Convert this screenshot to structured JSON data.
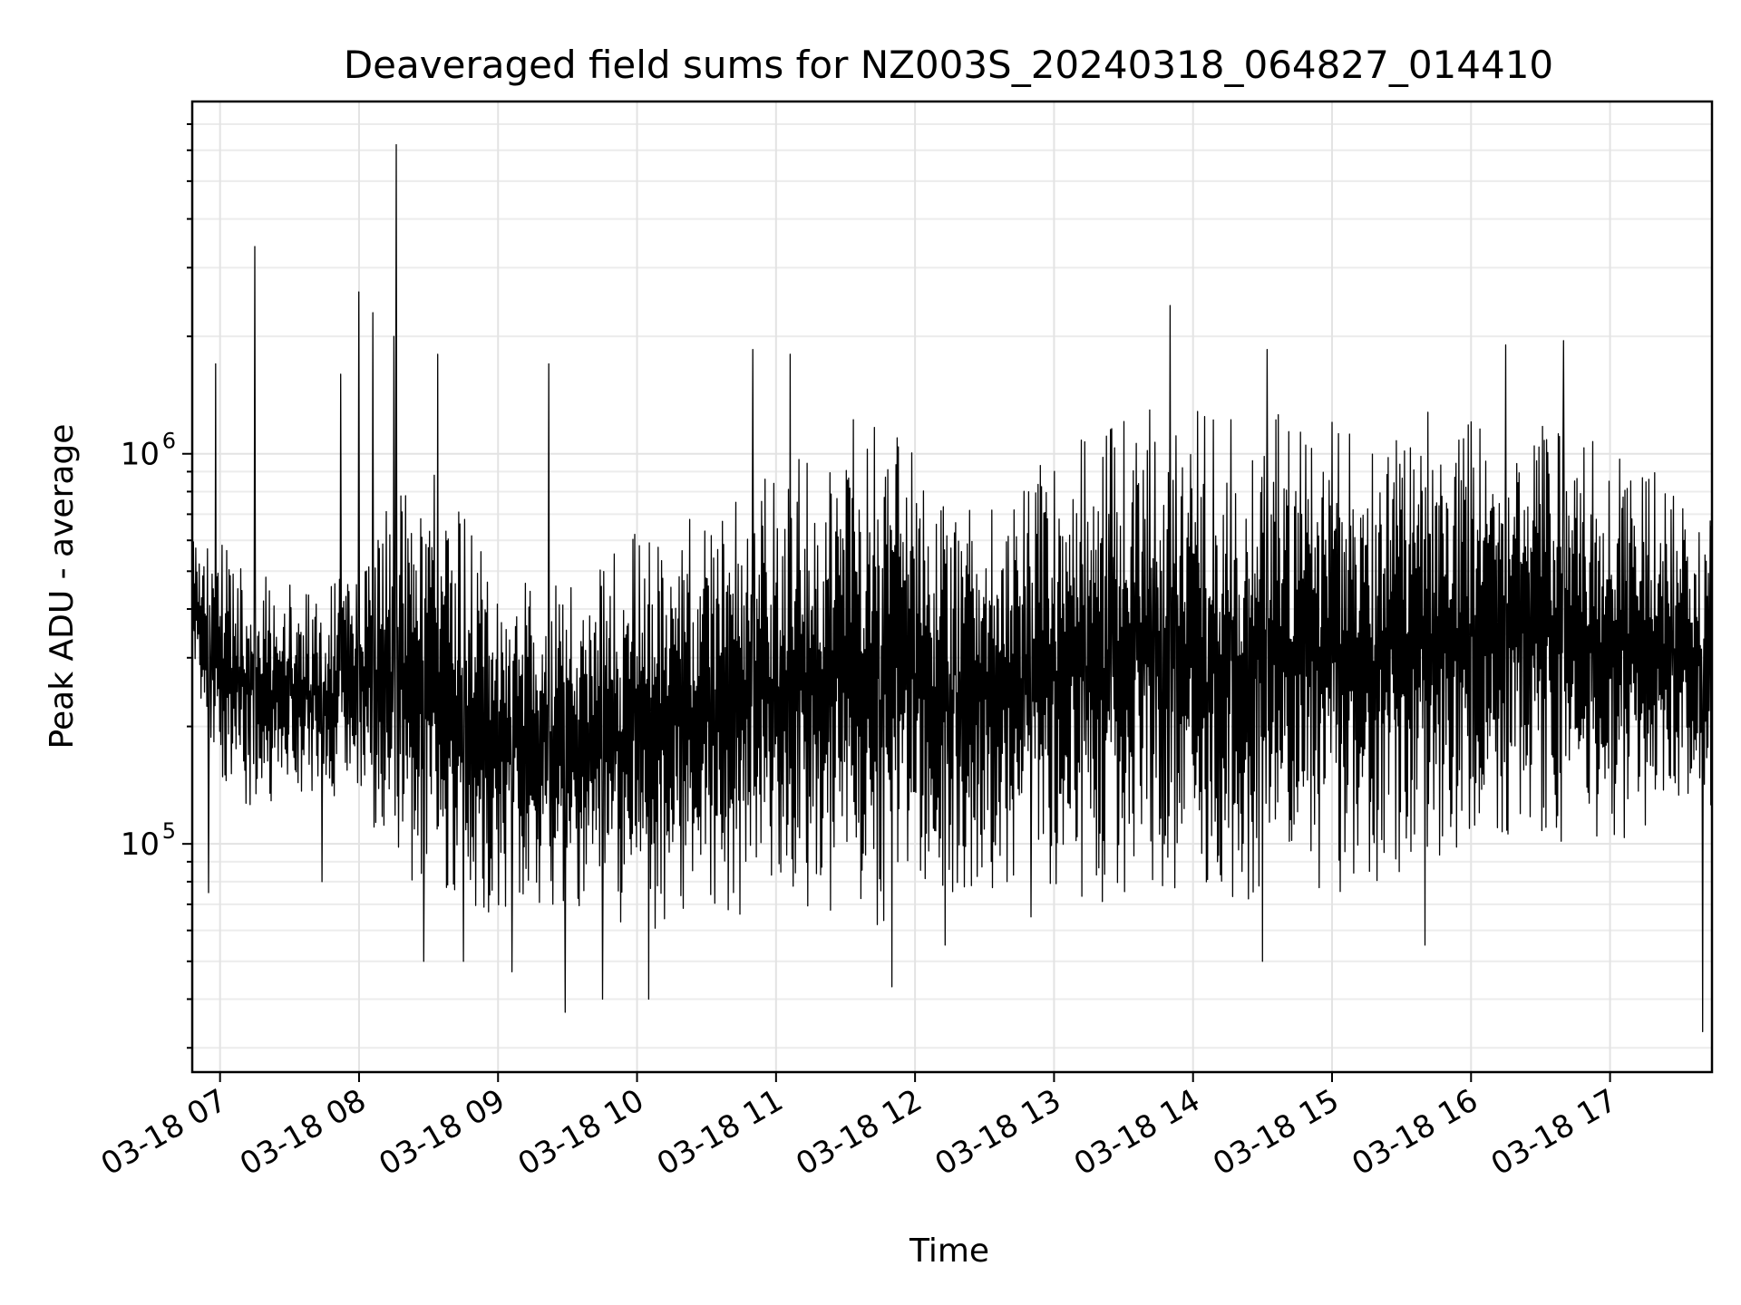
{
  "chart_data": {
    "type": "line",
    "title": "Deaveraged field sums for NZ003S_20240318_064827_014410",
    "xlabel": "Time",
    "ylabel": "Peak ADU - average",
    "xscale": "time",
    "yscale": "log",
    "xlim": [
      "2024-03-18 06:48",
      "2024-03-18 17:44"
    ],
    "ylim": [
      26000,
      8000000
    ],
    "grid": true,
    "legend": "none",
    "line_color": "#000000",
    "x_ticks": [
      {
        "value": "2024-03-18 07:00",
        "label": "03-18 07"
      },
      {
        "value": "2024-03-18 08:00",
        "label": "03-18 08"
      },
      {
        "value": "2024-03-18 09:00",
        "label": "03-18 09"
      },
      {
        "value": "2024-03-18 10:00",
        "label": "03-18 10"
      },
      {
        "value": "2024-03-18 11:00",
        "label": "03-18 11"
      },
      {
        "value": "2024-03-18 12:00",
        "label": "03-18 12"
      },
      {
        "value": "2024-03-18 13:00",
        "label": "03-18 13"
      },
      {
        "value": "2024-03-18 14:00",
        "label": "03-18 14"
      },
      {
        "value": "2024-03-18 15:00",
        "label": "03-18 15"
      },
      {
        "value": "2024-03-18 16:00",
        "label": "03-18 16"
      },
      {
        "value": "2024-03-18 17:00",
        "label": "03-18 17"
      }
    ],
    "y_ticks": [
      {
        "value": 100000,
        "base": "10",
        "exponent": "5"
      },
      {
        "value": 1000000,
        "base": "10",
        "exponent": "6"
      }
    ],
    "band_points": [
      {
        "t": "2024-03-18 06:48",
        "lo": 280000,
        "hi": 600000
      },
      {
        "t": "2024-03-18 07:00",
        "lo": 130000,
        "hi": 600000
      },
      {
        "t": "2024-03-18 07:20",
        "lo": 120000,
        "hi": 500000
      },
      {
        "t": "2024-03-18 07:40",
        "lo": 130000,
        "hi": 450000
      },
      {
        "t": "2024-03-18 08:00",
        "lo": 130000,
        "hi": 500000
      },
      {
        "t": "2024-03-18 08:20",
        "lo": 75000,
        "hi": 1000000
      },
      {
        "t": "2024-03-18 08:40",
        "lo": 70000,
        "hi": 850000
      },
      {
        "t": "2024-03-18 09:00",
        "lo": 65000,
        "hi": 450000
      },
      {
        "t": "2024-03-18 09:20",
        "lo": 70000,
        "hi": 500000
      },
      {
        "t": "2024-03-18 09:40",
        "lo": 60000,
        "hi": 500000
      },
      {
        "t": "2024-03-18 10:00",
        "lo": 60000,
        "hi": 650000
      },
      {
        "t": "2024-03-18 10:20",
        "lo": 60000,
        "hi": 700000
      },
      {
        "t": "2024-03-18 10:40",
        "lo": 60000,
        "hi": 750000
      },
      {
        "t": "2024-03-18 11:00",
        "lo": 70000,
        "hi": 900000
      },
      {
        "t": "2024-03-18 11:20",
        "lo": 65000,
        "hi": 1100000
      },
      {
        "t": "2024-03-18 11:40",
        "lo": 60000,
        "hi": 1300000
      },
      {
        "t": "2024-03-18 12:00",
        "lo": 70000,
        "hi": 1000000
      },
      {
        "t": "2024-03-18 12:20",
        "lo": 70000,
        "hi": 700000
      },
      {
        "t": "2024-03-18 12:40",
        "lo": 80000,
        "hi": 800000
      },
      {
        "t": "2024-03-18 13:00",
        "lo": 70000,
        "hi": 1000000
      },
      {
        "t": "2024-03-18 13:20",
        "lo": 65000,
        "hi": 1200000
      },
      {
        "t": "2024-03-18 13:40",
        "lo": 70000,
        "hi": 1300000
      },
      {
        "t": "2024-03-18 14:00",
        "lo": 70000,
        "hi": 1300000
      },
      {
        "t": "2024-03-18 14:20",
        "lo": 70000,
        "hi": 1300000
      },
      {
        "t": "2024-03-18 14:40",
        "lo": 70000,
        "hi": 1300000
      },
      {
        "t": "2024-03-18 15:00",
        "lo": 70000,
        "hi": 1300000
      },
      {
        "t": "2024-03-18 15:20",
        "lo": 80000,
        "hi": 1300000
      },
      {
        "t": "2024-03-18 15:40",
        "lo": 90000,
        "hi": 1300000
      },
      {
        "t": "2024-03-18 16:00",
        "lo": 100000,
        "hi": 1300000
      },
      {
        "t": "2024-03-18 16:20",
        "lo": 100000,
        "hi": 1400000
      },
      {
        "t": "2024-03-18 16:40",
        "lo": 100000,
        "hi": 1300000
      },
      {
        "t": "2024-03-18 17:00",
        "lo": 100000,
        "hi": 1000000
      },
      {
        "t": "2024-03-18 17:20",
        "lo": 110000,
        "hi": 900000
      },
      {
        "t": "2024-03-18 17:44",
        "lo": 120000,
        "hi": 700000
      }
    ],
    "spikes": [
      {
        "t": "2024-03-18 06:55",
        "value": 75000
      },
      {
        "t": "2024-03-18 06:58",
        "value": 1700000
      },
      {
        "t": "2024-03-18 07:15",
        "value": 3400000
      },
      {
        "t": "2024-03-18 07:44",
        "value": 80000
      },
      {
        "t": "2024-03-18 07:52",
        "value": 1600000
      },
      {
        "t": "2024-03-18 08:00",
        "value": 2600000
      },
      {
        "t": "2024-03-18 08:06",
        "value": 2300000
      },
      {
        "t": "2024-03-18 08:15",
        "value": 2000000
      },
      {
        "t": "2024-03-18 08:16",
        "value": 6200000
      },
      {
        "t": "2024-03-18 08:28",
        "value": 50000
      },
      {
        "t": "2024-03-18 08:34",
        "value": 1800000
      },
      {
        "t": "2024-03-18 08:45",
        "value": 50000
      },
      {
        "t": "2024-03-18 09:06",
        "value": 47000
      },
      {
        "t": "2024-03-18 09:22",
        "value": 1700000
      },
      {
        "t": "2024-03-18 09:29",
        "value": 37000
      },
      {
        "t": "2024-03-18 09:45",
        "value": 40000
      },
      {
        "t": "2024-03-18 10:05",
        "value": 40000
      },
      {
        "t": "2024-03-18 10:50",
        "value": 1850000
      },
      {
        "t": "2024-03-18 11:06",
        "value": 1800000
      },
      {
        "t": "2024-03-18 11:50",
        "value": 43000
      },
      {
        "t": "2024-03-18 12:13",
        "value": 55000
      },
      {
        "t": "2024-03-18 12:50",
        "value": 65000
      },
      {
        "t": "2024-03-18 13:50",
        "value": 2400000
      },
      {
        "t": "2024-03-18 14:32",
        "value": 1850000
      },
      {
        "t": "2024-03-18 14:30",
        "value": 50000
      },
      {
        "t": "2024-03-18 15:40",
        "value": 55000
      },
      {
        "t": "2024-03-18 16:15",
        "value": 1900000
      },
      {
        "t": "2024-03-18 16:40",
        "value": 1950000
      },
      {
        "t": "2024-03-18 17:40",
        "value": 33000
      }
    ]
  }
}
